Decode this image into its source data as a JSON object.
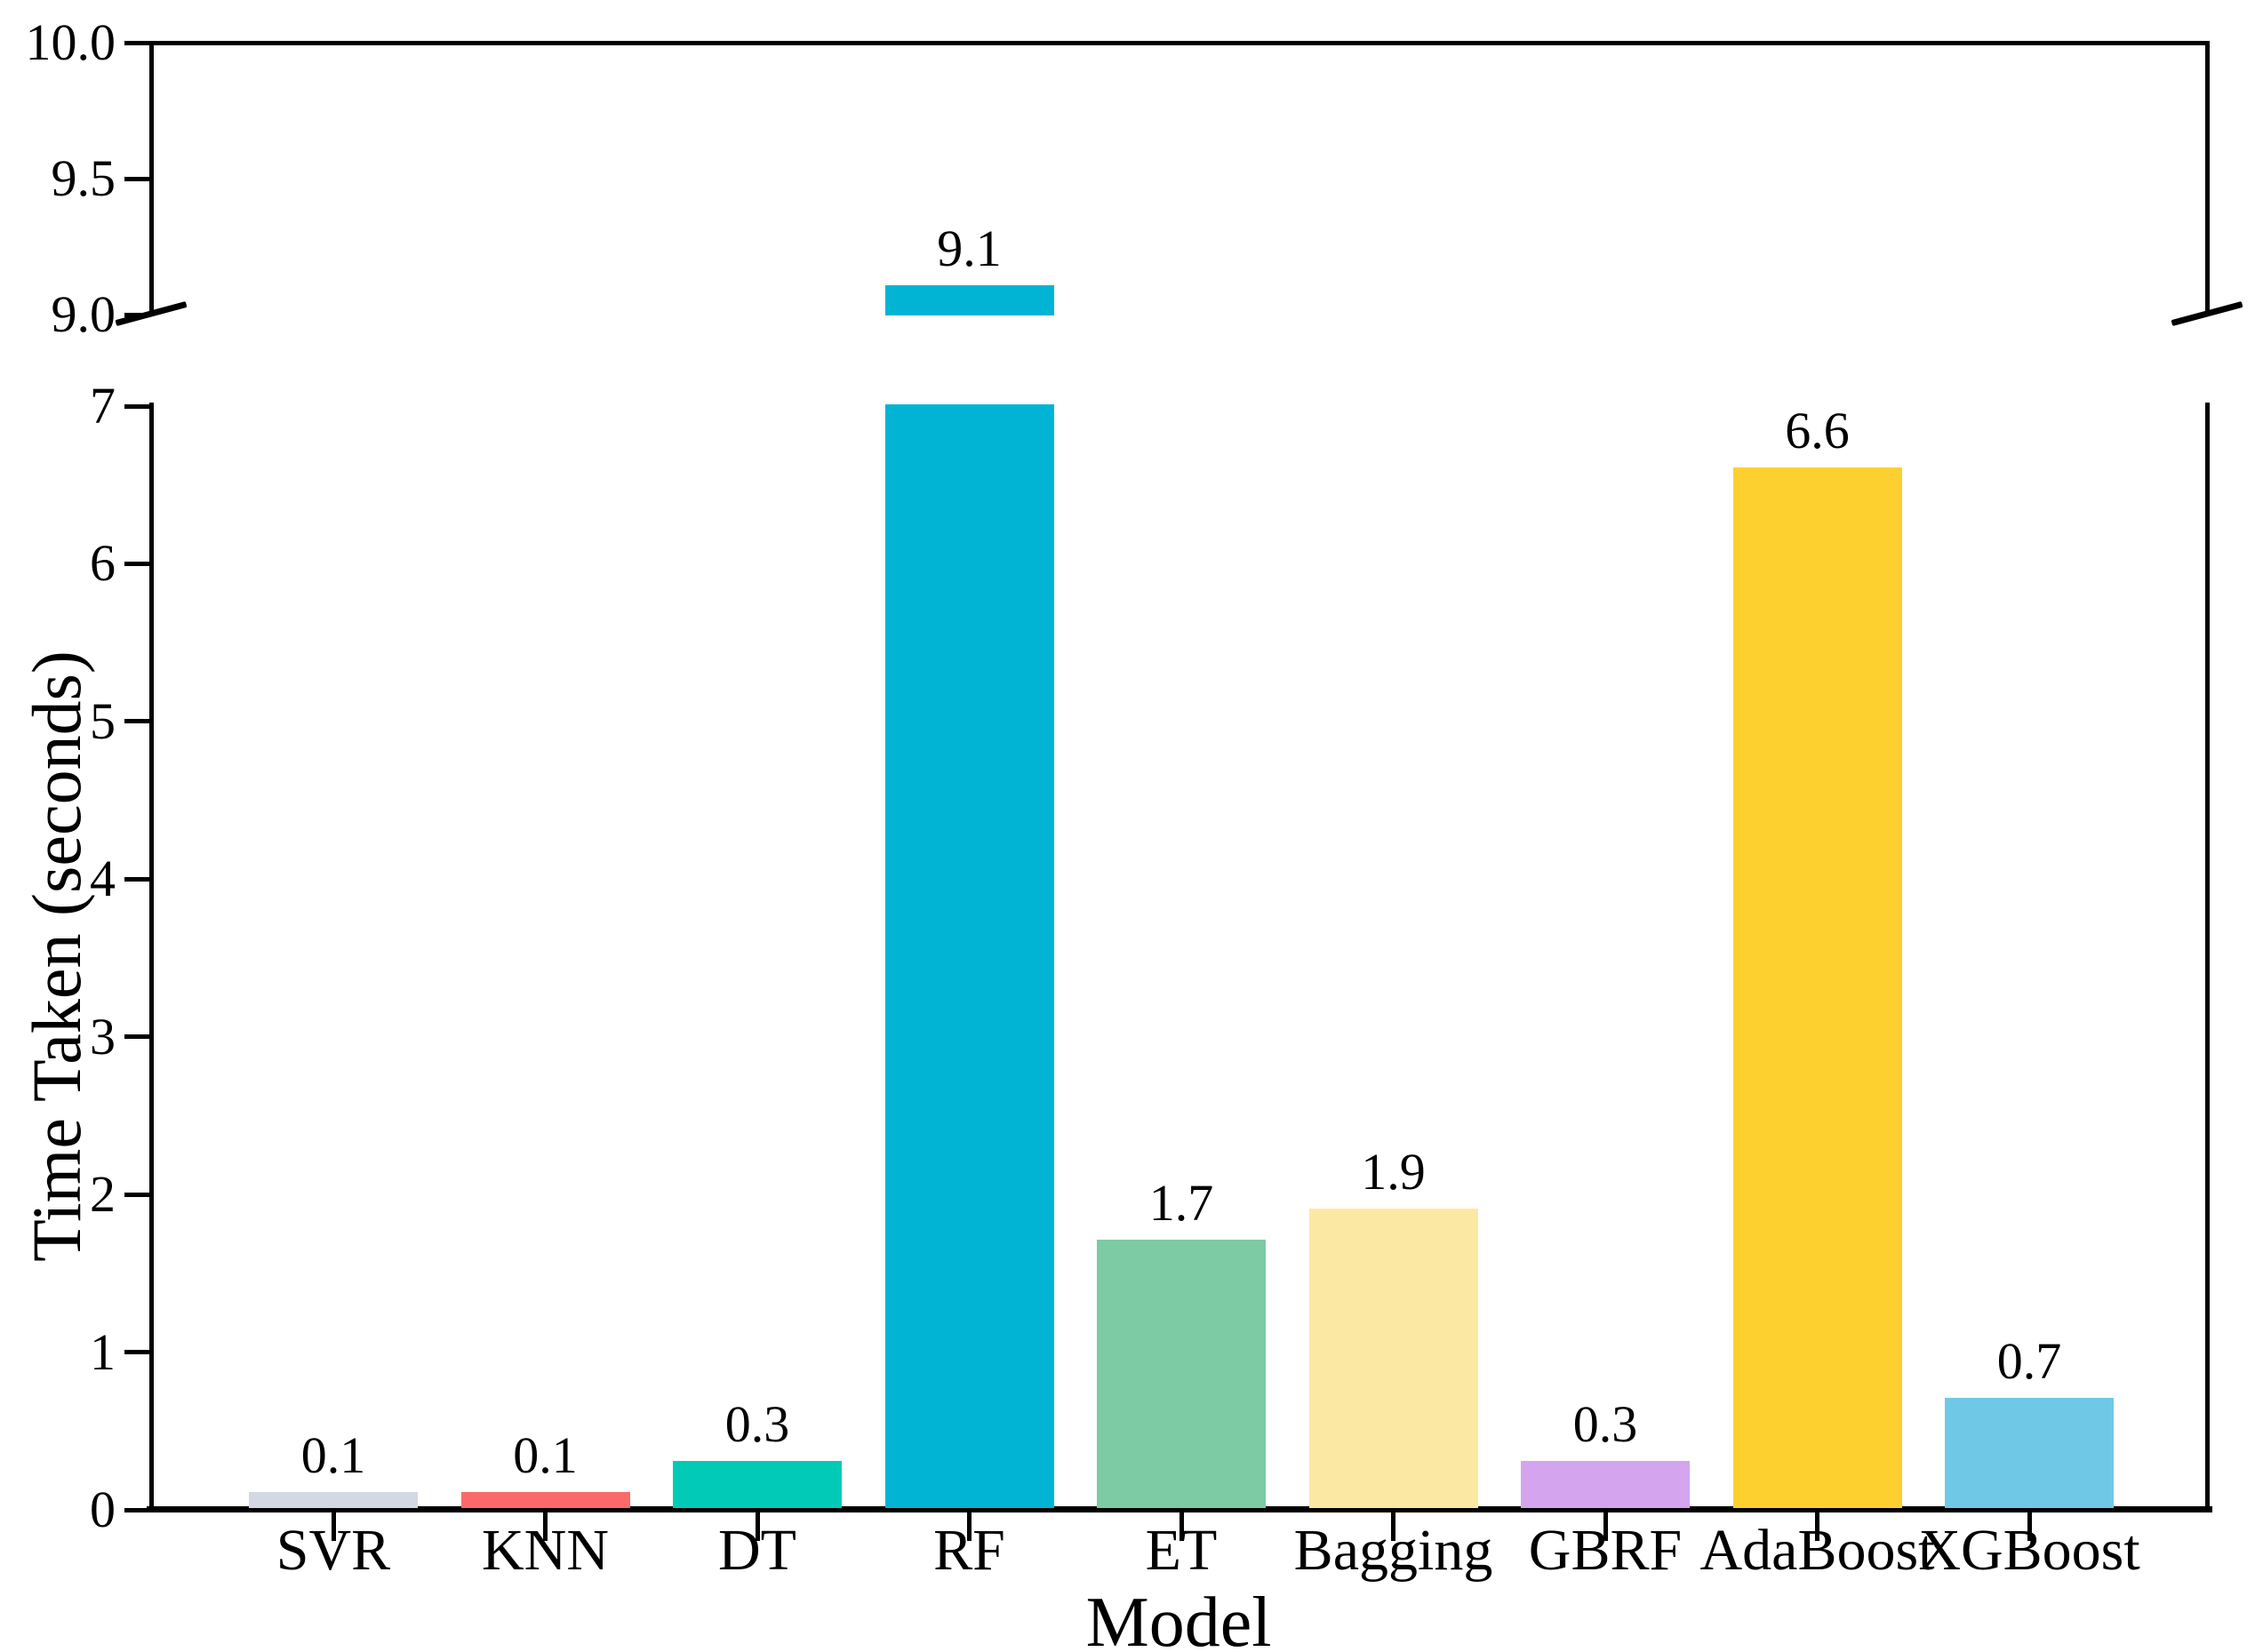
{
  "chart_data": {
    "type": "bar",
    "title": "",
    "xlabel": "Model",
    "ylabel": "Time Taken (seconds)",
    "categories": [
      "SVR",
      "KNN",
      "DT",
      "RF",
      "ET",
      "Bagging",
      "GBRF",
      "AdaBoost",
      "XGBoost"
    ],
    "values": [
      0.1,
      0.1,
      0.3,
      9.1,
      1.7,
      1.9,
      0.3,
      6.6,
      0.7
    ],
    "value_labels": [
      "0.1",
      "0.1",
      "0.3",
      "9.1",
      "1.7",
      "1.9",
      "0.3",
      "6.6",
      "0.7"
    ],
    "bar_colors": [
      "#D3D8E4",
      "#FB6A68",
      "#01CBB7",
      "#01B4D4",
      "#7CCBA4",
      "#FBE9A3",
      "#D4A5EE",
      "#FDD030",
      "#6FC9E6"
    ],
    "grid": false,
    "legend": "none",
    "background_color": "#ffffff",
    "axis_color": "#000000",
    "broken_axis": {
      "upper_panel": {
        "ylim": [
          9.0,
          10.0
        ],
        "yticks": [
          {
            "label": "10.0",
            "value": 10.0
          },
          {
            "label": "9.5",
            "value": 9.5
          },
          {
            "label": "9.0",
            "value": 9.0
          }
        ]
      },
      "lower_panel": {
        "ylim": [
          0,
          7
        ],
        "yticks": [
          {
            "label": "7",
            "value": 7
          },
          {
            "label": "6",
            "value": 6
          },
          {
            "label": "5",
            "value": 5
          },
          {
            "label": "4",
            "value": 4
          },
          {
            "label": "3",
            "value": 3
          },
          {
            "label": "2",
            "value": 2
          },
          {
            "label": "1",
            "value": 1
          },
          {
            "label": "0",
            "value": 0
          }
        ]
      }
    }
  }
}
